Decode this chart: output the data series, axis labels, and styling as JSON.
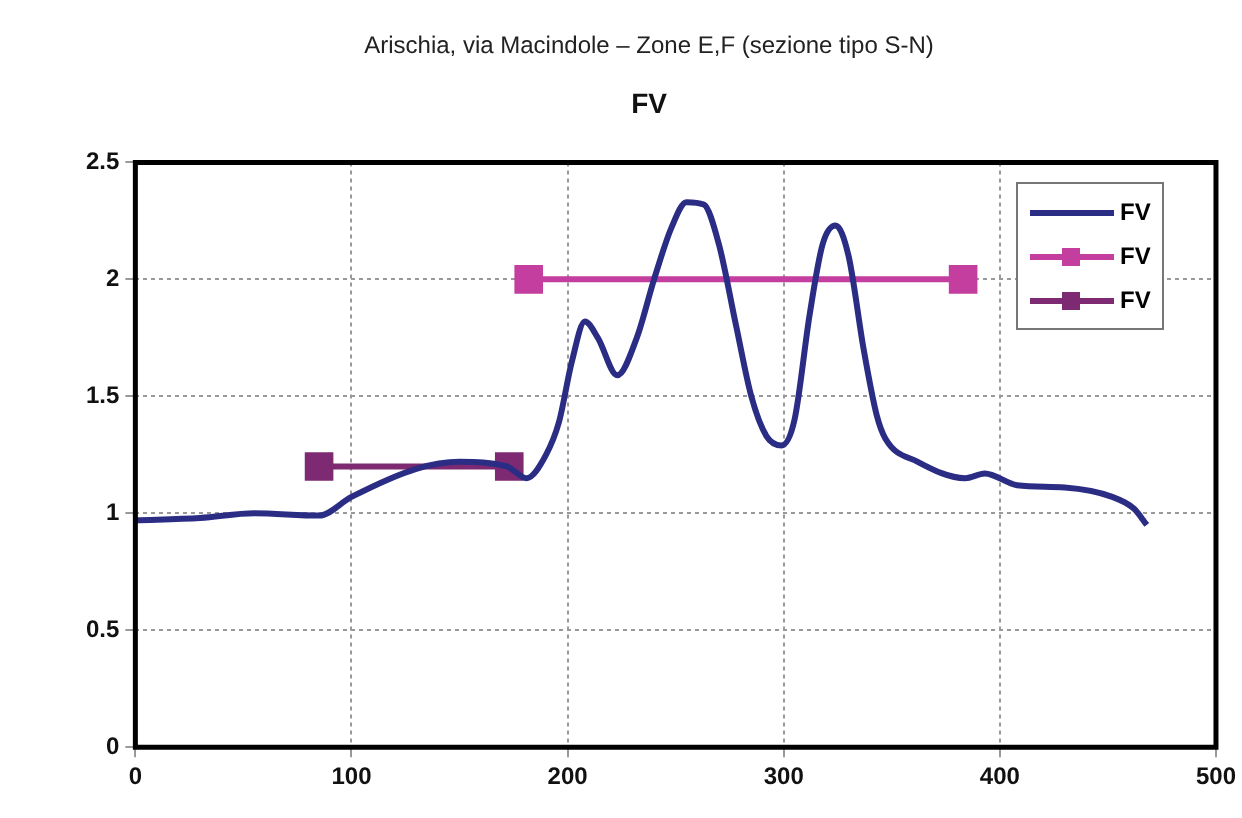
{
  "chart_data": {
    "type": "line",
    "title": "Arischia, via Macindole – Zone E,F (sezione tipo S-N)",
    "subtitle": "FV",
    "xlim": [
      0,
      500
    ],
    "xticks": [
      0,
      100,
      200,
      300,
      400,
      500
    ],
    "ylim": [
      0,
      2.5
    ],
    "yticks": [
      0,
      0.5,
      1,
      1.5,
      2,
      2.5
    ],
    "grid": true,
    "legend": "top right",
    "line_style": "solid",
    "series": [
      {
        "name": "FV",
        "color": "#2b2d85",
        "marker": "none",
        "x": [
          0,
          30,
          55,
          85,
          100,
          130,
          150,
          172,
          181,
          190,
          196,
          202,
          208,
          214,
          223,
          232,
          240,
          248,
          255,
          263,
          270,
          278,
          285,
          292,
          299,
          305,
          312,
          318,
          324,
          330,
          337,
          343,
          347,
          362,
          384,
          393,
          408,
          430,
          452,
          462,
          468
        ],
        "values": [
          0.97,
          0.98,
          1.0,
          0.99,
          1.07,
          1.19,
          1.22,
          1.2,
          1.15,
          1.25,
          1.39,
          1.65,
          1.82,
          1.75,
          1.59,
          1.75,
          2.0,
          2.22,
          2.33,
          2.32,
          2.15,
          1.8,
          1.5,
          1.33,
          1.29,
          1.4,
          1.85,
          2.15,
          2.23,
          2.1,
          1.7,
          1.42,
          1.32,
          1.22,
          1.15,
          1.17,
          1.12,
          1.11,
          1.07,
          1.02,
          0.95
        ]
      },
      {
        "name": "FV",
        "color": "#c43ea0",
        "marker": "square",
        "x": [
          182,
          383
        ],
        "values": [
          2,
          2
        ]
      },
      {
        "name": "FV",
        "color": "#7d2a72",
        "marker": "square",
        "x": [
          85,
          173
        ],
        "values": [
          1.2,
          1.2
        ]
      }
    ]
  }
}
